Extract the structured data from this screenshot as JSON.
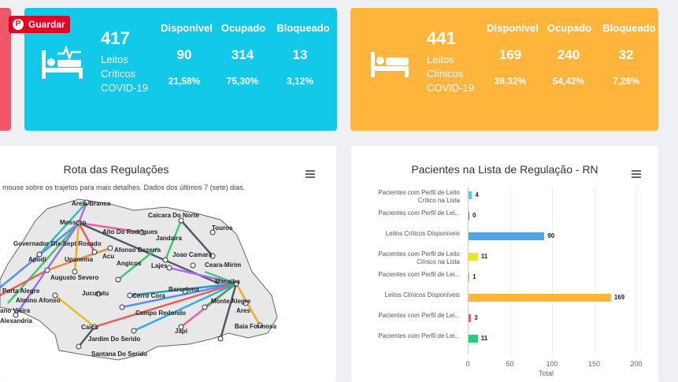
{
  "pin_button": {
    "label": "Guardar",
    "icon": "pinterest-icon"
  },
  "card_critical": {
    "total": "417",
    "label_line1": "Leitos",
    "label_line2": "Críticos",
    "label_line3": "COVID-19",
    "col1": "Disponível",
    "col2": "Ocupado",
    "col3": "Bloqueado",
    "v1": "90",
    "v2": "314",
    "v3": "13",
    "p1": "21,58%",
    "p2": "75,30%",
    "p3": "3,12%",
    "color": "#13c9e9"
  },
  "card_clinical": {
    "total": "441",
    "label_line1": "Leitos",
    "label_line2": "Clínicos",
    "label_line3": "COVID-19",
    "col1": "Disponível",
    "col2": "Ocupado",
    "col3": "Bloqueado",
    "v1": "169",
    "v2": "240",
    "v3": "32",
    "p1": "38,32%",
    "p2": "54,42%",
    "p3": "7,26%",
    "color": "#ffb53b"
  },
  "map_panel": {
    "title": "Rota das Regulações",
    "subtitle": "mouse sobre os trajetos para mais detalhes. Dados dos últimos 7 (sete) dias.",
    "cities": [
      "Areia Branca",
      "Mossoro",
      "Caicara Do Norte",
      "Touros",
      "Alto Do Rodrigues",
      "Jandaira",
      "Governador Dix-Sept Rosado",
      "Afonso Bezerra",
      "Apodi",
      "Acu",
      "Upanema",
      "Angicos",
      "Joao Camara",
      "Ceara-Mirim",
      "Lajes",
      "Augusto Severo",
      "Macaiba",
      "Porta Alegre",
      "Barcelona",
      "Almino Afonso",
      "Jucurutu",
      "Cerro Cora",
      "Monte Alegre",
      "ano Vieira",
      "Campo Redondo",
      "Ares",
      "Alexandria",
      "Baia Formosa",
      "Caico",
      "Japi",
      "Jardim Do Serido",
      "Santana Do Serido"
    ]
  },
  "chart_panel": {
    "title": "Pacientes na Lista de Regulação - RN"
  },
  "chart_data": {
    "type": "bar",
    "orientation": "horizontal",
    "title": "Pacientes na Lista de Regulação - RN",
    "categories": [
      "Pacientes com Perfil de Leito Crítico na Lista",
      "Pacientes com Perfil de Lei...",
      "Leitos Críticos Disponíveis",
      "Pacientes com Perfil de Leito Clínico na Lista",
      "Pacientes com Perfil de Lei...",
      "Leitos Clínicos Disponíveis",
      "Pacientes com Perfil de Lei...",
      "Pacientes com Perfil de Lei..."
    ],
    "values": [
      4,
      0,
      90,
      11,
      1,
      169,
      3,
      11
    ],
    "colors": [
      "#4fd1e8",
      "#9b59b6",
      "#4da6e8",
      "#e8e81a",
      "#ff9a3c",
      "#ffb53b",
      "#f25767",
      "#22d17a"
    ],
    "xlim": [
      0,
      200
    ],
    "ticks": [
      "0",
      "50",
      "100",
      "150",
      "200"
    ],
    "xlabel": "Total"
  }
}
